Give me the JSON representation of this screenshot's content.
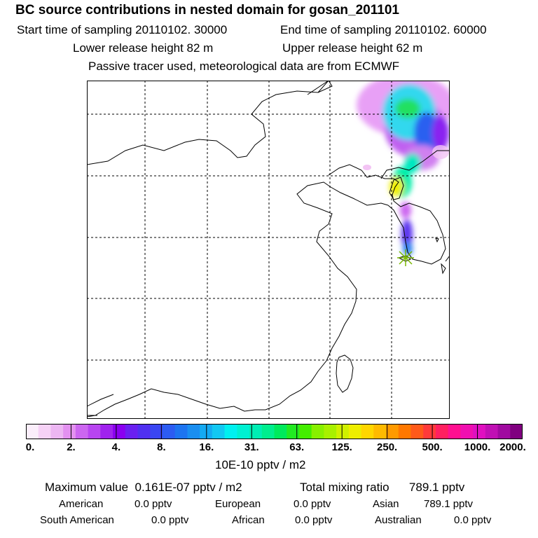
{
  "header": {
    "title": "BC  source contributions in nested domain for gosan_201101",
    "start_label": "Start time of sampling 20110102. 30000",
    "end_label": "End time of sampling 20110102. 60000",
    "lower_label": "Lower release height   82 m",
    "upper_label": "Upper release height   62 m",
    "note": "Passive tracer used, meteorological data are from ECMWF"
  },
  "colorbar": {
    "ticks": [
      "0.",
      "2.",
      "4.",
      "8.",
      "16.",
      "31.",
      "63.",
      "125.",
      "250.",
      "500.",
      "1000.",
      "2000."
    ],
    "units": "10E-10 pptv / m2",
    "colors": [
      "#fbeefb",
      "#f6d2f6",
      "#ecb6f2",
      "#e391f0",
      "#cc66f0",
      "#b845f0",
      "#a022ee",
      "#8a00f0",
      "#6a20f0",
      "#5030f0",
      "#3a46f2",
      "#2c5cf2",
      "#1d74f0",
      "#1a8ef0",
      "#14aaf2",
      "#12c8f2",
      "#00f0f0",
      "#00f0d2",
      "#00eeb4",
      "#00ee8e",
      "#00ea5c",
      "#22ea22",
      "#44ee00",
      "#88f000",
      "#a8f000",
      "#d0f000",
      "#eeee00",
      "#ffd600",
      "#ffba00",
      "#ff9a00",
      "#ff7800",
      "#ff5a1a",
      "#ff3a3a",
      "#ff2060",
      "#ff1090",
      "#f010b0",
      "#e010c0",
      "#c010b4",
      "#a00aa0",
      "#800080"
    ]
  },
  "summary": {
    "max_label": "Maximum value",
    "max_value": "0.161E-07 pptv / m2",
    "total_label": "Total mixing ratio",
    "total_value": "789.1 pptv",
    "sources": [
      {
        "name": "American",
        "value": "0.0 pptv"
      },
      {
        "name": "European",
        "value": "0.0 pptv"
      },
      {
        "name": "Asian",
        "value": "789.1 pptv"
      },
      {
        "name": "South American",
        "value": "0.0 pptv"
      },
      {
        "name": "African",
        "value": "0.0 pptv"
      },
      {
        "name": "Australian",
        "value": "0.0 pptv"
      }
    ]
  },
  "colors": {
    "ink": "#000000",
    "background": "#ffffff",
    "marker": "#7ab800"
  }
}
